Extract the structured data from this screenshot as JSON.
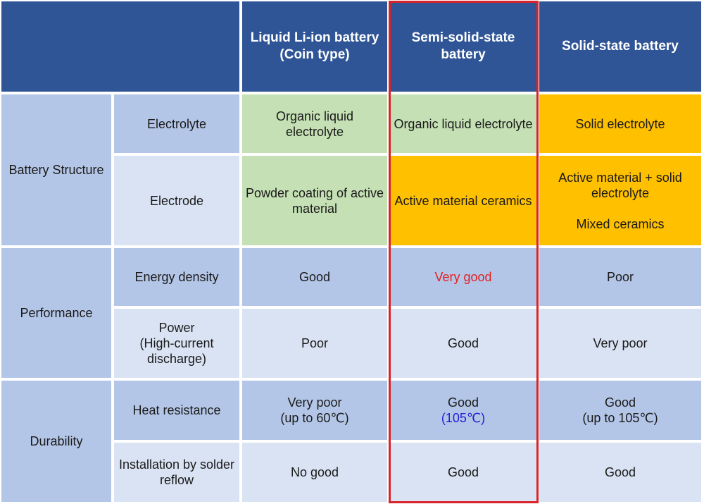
{
  "header": {
    "col1_line1": "Liquid Li-ion battery",
    "col1_line2": "(Coin type)",
    "col2_line1": "Semi-solid-state",
    "col2_line2": "battery",
    "col3": "Solid-state battery"
  },
  "groups": {
    "structure": "Battery Structure",
    "performance": "Performance",
    "durability": "Durability"
  },
  "rows": {
    "electrolyte": {
      "label": "Electrolyte",
      "liquid_l1": "Organic liquid",
      "liquid_l2": "electrolyte",
      "semi": "Organic liquid electrolyte",
      "solid": "Solid electrolyte"
    },
    "electrode": {
      "label": "Electrode",
      "liquid_l1": "Powder coating of active",
      "liquid_l2": "material",
      "semi": "Active material ceramics",
      "solid_l1": "Active material + solid",
      "solid_l2": "electrolyte",
      "solid_l3": "Mixed ceramics"
    },
    "energy": {
      "label": "Energy density",
      "liquid": "Good",
      "semi": "Very good",
      "solid": "Poor"
    },
    "power": {
      "label_l1": "Power",
      "label_l2": "(High-current",
      "label_l3": "discharge)",
      "liquid": "Poor",
      "semi": "Good",
      "solid": "Very poor"
    },
    "heat": {
      "label": "Heat resistance",
      "liquid_l1": "Very poor",
      "liquid_l2": "(up to 60℃)",
      "semi_l1": "Good",
      "semi_l2": "(105℃)",
      "solid_l1": "Good",
      "solid_l2": "(up to 105℃)"
    },
    "reflow": {
      "label_l1": "Installation by solder",
      "label_l2": "reflow",
      "liquid": "No good",
      "semi": "Good",
      "solid": "Good"
    }
  },
  "colors": {
    "header_blue": "#2f5597",
    "row_dark": "#b4c6e7",
    "row_light": "#dae3f3",
    "green": "#c5e0b4",
    "orange": "#ffc000",
    "highlight_red": "#d9232a"
  }
}
